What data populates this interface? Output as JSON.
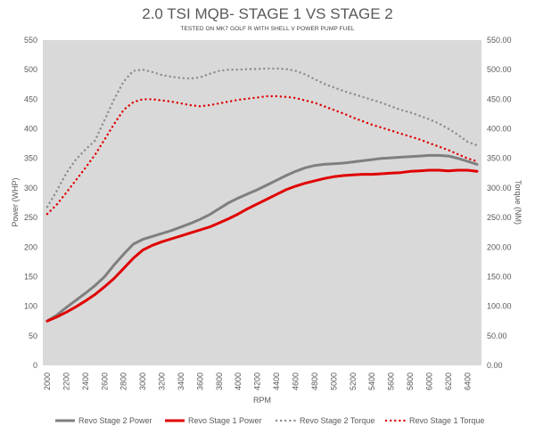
{
  "chart_data": {
    "type": "line",
    "title": "2.0 TSI MQB- STAGE 1 VS STAGE 2",
    "subtitle": "TESTED ON MK7 GOLF R WITH SHELL V POWER PUMP FUEL",
    "xlabel": "RPM",
    "ylabel_left": "Power (WHP)",
    "ylabel_right": "Torque (NM)",
    "x": [
      2000,
      2100,
      2200,
      2300,
      2400,
      2500,
      2600,
      2700,
      2800,
      2900,
      3000,
      3100,
      3200,
      3300,
      3400,
      3500,
      3600,
      3700,
      3800,
      3900,
      4000,
      4100,
      4200,
      4300,
      4400,
      4500,
      4600,
      4700,
      4800,
      4900,
      5000,
      5100,
      5200,
      5300,
      5400,
      5500,
      5600,
      5700,
      5800,
      5900,
      6000,
      6100,
      6200,
      6300,
      6400,
      6500
    ],
    "x_ticks": [
      "2000",
      "2200",
      "2400",
      "2600",
      "2800",
      "3000",
      "3200",
      "3400",
      "3600",
      "3800",
      "4000",
      "4200",
      "4400",
      "4600",
      "4800",
      "5000",
      "5200",
      "5400",
      "5600",
      "5800",
      "6000",
      "6200",
      "6400"
    ],
    "ylim_left": [
      0,
      550
    ],
    "yticks_left": [
      "0",
      "50",
      "100",
      "150",
      "200",
      "250",
      "300",
      "350",
      "400",
      "450",
      "500",
      "550"
    ],
    "ylim_right": [
      0,
      550
    ],
    "yticks_right": [
      "0.00",
      "50.00",
      "100.00",
      "150.00",
      "200.00",
      "250.00",
      "300.00",
      "350.00",
      "400.00",
      "450.00",
      "500.00",
      "550.00"
    ],
    "grid": false,
    "legend_position": "bottom",
    "series": [
      {
        "name": "Revo Stage 2 Power",
        "axis": "left",
        "style": "solid",
        "color": "#7f7f7f",
        "values": [
          75,
          85,
          98,
          110,
          122,
          135,
          150,
          170,
          188,
          205,
          213,
          218,
          223,
          228,
          234,
          240,
          247,
          255,
          265,
          275,
          283,
          290,
          297,
          305,
          313,
          321,
          328,
          334,
          338,
          340,
          341,
          342,
          344,
          346,
          348,
          350,
          351,
          352,
          353,
          354,
          355,
          355,
          354,
          350,
          345,
          340
        ]
      },
      {
        "name": "Revo Stage 1 Power",
        "axis": "left",
        "style": "solid",
        "color": "#e00000",
        "values": [
          75,
          82,
          90,
          99,
          109,
          120,
          133,
          147,
          164,
          181,
          195,
          203,
          209,
          214,
          219,
          224,
          229,
          234,
          241,
          248,
          256,
          265,
          273,
          281,
          289,
          297,
          303,
          308,
          312,
          316,
          319,
          321,
          322,
          323,
          323,
          324,
          325,
          326,
          328,
          329,
          330,
          330,
          329,
          330,
          330,
          328
        ]
      },
      {
        "name": "Revo Stage 2 Torque",
        "axis": "right",
        "style": "dotted",
        "color": "#8c8c8c",
        "values": [
          268,
          295,
          325,
          348,
          365,
          380,
          415,
          450,
          480,
          498,
          500,
          496,
          491,
          488,
          486,
          485,
          487,
          493,
          498,
          500,
          500,
          501,
          501,
          502,
          502,
          501,
          498,
          492,
          484,
          476,
          470,
          464,
          459,
          454,
          449,
          444,
          438,
          432,
          428,
          422,
          416,
          409,
          400,
          390,
          378,
          372
        ]
      },
      {
        "name": "Revo Stage 1 Torque",
        "axis": "right",
        "style": "dotted",
        "color": "#e00000",
        "values": [
          256,
          272,
          292,
          313,
          334,
          356,
          382,
          408,
          432,
          445,
          450,
          450,
          448,
          446,
          443,
          440,
          438,
          440,
          443,
          446,
          449,
          451,
          453,
          455,
          455,
          454,
          452,
          448,
          444,
          438,
          432,
          426,
          419,
          413,
          407,
          402,
          397,
          392,
          387,
          382,
          376,
          370,
          364,
          357,
          350,
          345
        ]
      }
    ]
  }
}
